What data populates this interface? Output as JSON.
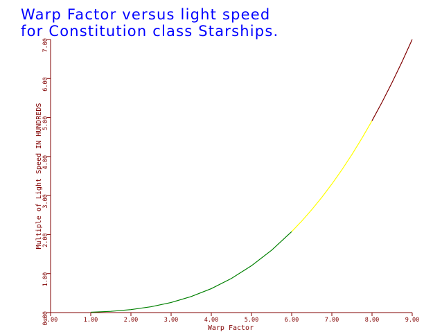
{
  "chart_data": {
    "type": "line",
    "title": [
      "Warp Factor versus light speed",
      "for Constitution class Starships."
    ],
    "xlabel": "Warp Factor",
    "ylabel": "Multiple of Light Speed  IN HUNDREDS",
    "xlim": [
      0,
      9
    ],
    "ylim": [
      0,
      7
    ],
    "x_ticks": [
      "0.00",
      "1.00",
      "2.00",
      "3.00",
      "4.00",
      "5.00",
      "6.00",
      "7.00",
      "8.00",
      "9.00"
    ],
    "y_ticks": [
      "0.00",
      "1.00",
      "2.00",
      "3.00",
      "4.00",
      "5.00",
      "6.00",
      "7.00"
    ],
    "grid": false,
    "legend": "none",
    "curve": "y = x^3 / 104.1 (hundreds of c)",
    "segments": [
      {
        "color": "#008000",
        "x": [
          1.0,
          1.5,
          2.0,
          2.5,
          3.0,
          3.5,
          4.0,
          4.5,
          5.0,
          5.5,
          6.0
        ],
        "y": [
          0.0096,
          0.0324,
          0.0769,
          0.1501,
          0.2594,
          0.4119,
          0.6148,
          0.8754,
          1.2008,
          1.5982,
          2.0749
        ]
      },
      {
        "color": "#ffff00",
        "x": [
          6.0,
          6.25,
          6.5,
          6.75,
          7.0,
          7.25,
          7.5,
          7.75,
          8.0
        ],
        "y": [
          2.0749,
          2.3452,
          2.6383,
          2.9542,
          3.2949,
          3.6607,
          4.0525,
          4.4712,
          4.9183
        ]
      },
      {
        "color": "#800000",
        "x": [
          8.0,
          8.25,
          8.5,
          8.75,
          9.0
        ],
        "y": [
          4.9183,
          5.3942,
          5.9,
          6.4364,
          7.0029
        ]
      }
    ],
    "colors": {
      "title": "#0000ff",
      "axes": "#800000",
      "labels": "#800000",
      "background": "#ffffff"
    }
  }
}
